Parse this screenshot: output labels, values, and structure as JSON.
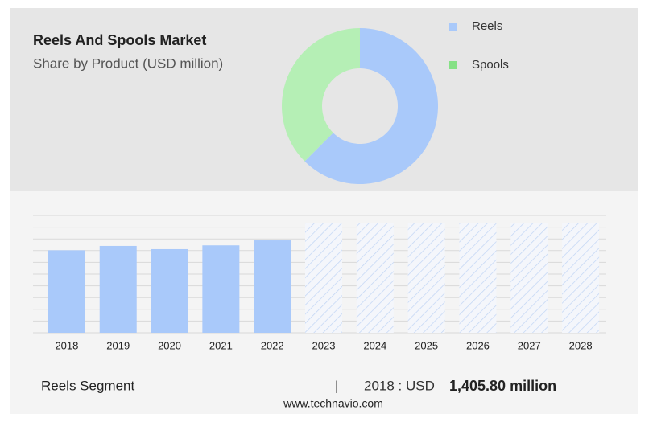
{
  "chart_data": [
    {
      "type": "donut",
      "title": "Reels And Spools Market",
      "subtitle": "Share by Product (USD million)",
      "categories": [
        "Reels",
        "Spools"
      ],
      "values": [
        62.5,
        37.5
      ],
      "colors": [
        "#a9c9fa",
        "#b5efb5"
      ],
      "legend_colors": [
        "#a9c9fa",
        "#86e186"
      ],
      "legend": "right"
    },
    {
      "type": "bar",
      "categories": [
        "2018",
        "2019",
        "2020",
        "2021",
        "2022",
        "2023",
        "2024",
        "2025",
        "2026",
        "2027",
        "2028"
      ],
      "values": [
        1405.8,
        1480,
        1425,
        1490,
        1575,
        null,
        null,
        null,
        null,
        null,
        null
      ],
      "color": "#a9c9fa",
      "ylim": [
        0,
        2000
      ],
      "yticks": [
        0,
        200,
        400,
        600,
        800,
        1000,
        1200,
        1400,
        1600,
        1800,
        2000
      ],
      "grid": true
    }
  ],
  "footer": {
    "segment": "Reels Segment",
    "separator": "|",
    "year_label": "2018 : USD",
    "value": "1,405.80 million",
    "source": "www.technavio.com"
  }
}
